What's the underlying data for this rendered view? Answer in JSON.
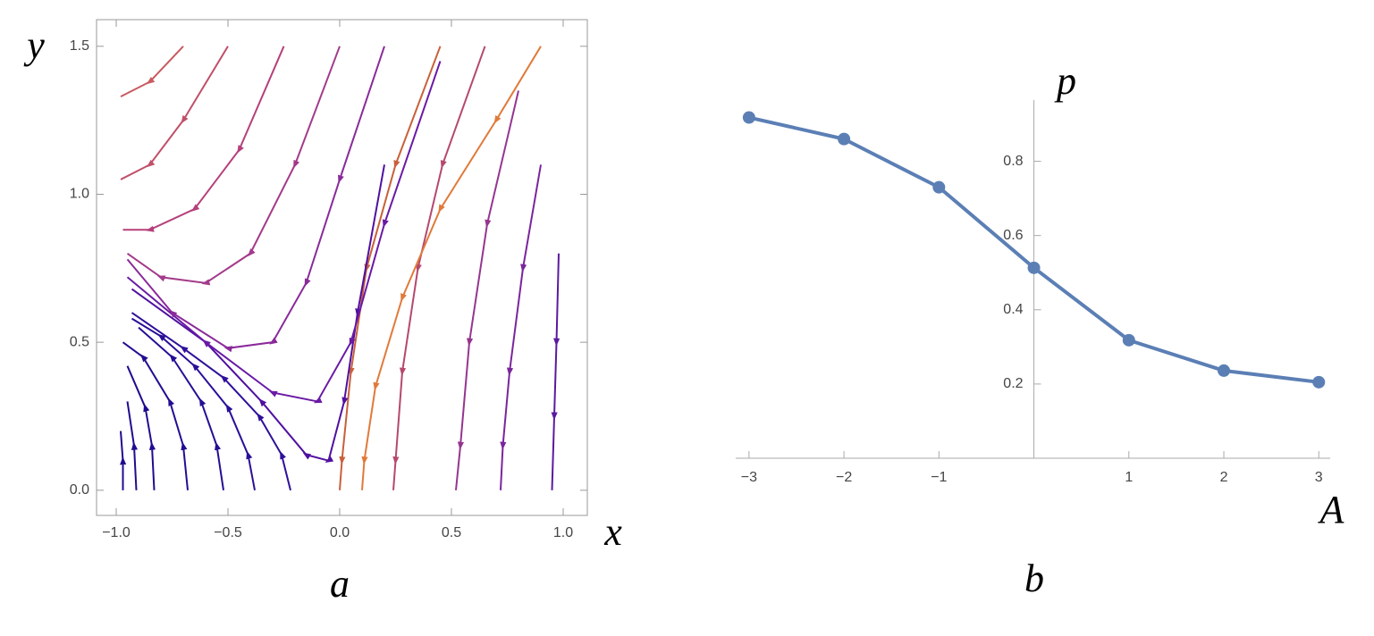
{
  "chart_data": [
    {
      "type": "stream",
      "caption": "a",
      "xlabel": "x",
      "ylabel": "y",
      "xlim": [
        -1.088,
        1.108
      ],
      "ylim": [
        -0.085,
        1.59
      ],
      "xticks": [
        {
          "value": -1,
          "label": "−1.0"
        },
        {
          "value": -0.5,
          "label": "−0.5"
        },
        {
          "value": 0,
          "label": "0.0"
        },
        0.5,
        {
          "value": 1,
          "label": "1.0"
        }
      ],
      "yticks": [
        {
          "value": 0,
          "label": "0.0"
        },
        0.5,
        {
          "value": 1,
          "label": "1.0"
        },
        1.5
      ],
      "series": [
        {
          "color": "#1f0c8f",
          "x": [
            -0.97,
            -0.97,
            -0.98
          ],
          "y": [
            0,
            0.1,
            0.2
          ]
        },
        {
          "color": "#1f0c8f",
          "x": [
            -0.91,
            -0.92,
            -0.95
          ],
          "y": [
            0,
            0.15,
            0.3
          ]
        },
        {
          "color": "#1f0c8f",
          "x": [
            -0.83,
            -0.84,
            -0.87,
            -0.95
          ],
          "y": [
            0,
            0.15,
            0.28,
            0.42
          ]
        },
        {
          "color": "#220d92",
          "x": [
            -0.68,
            -0.7,
            -0.76,
            -0.88,
            -0.97
          ],
          "y": [
            0,
            0.15,
            0.3,
            0.45,
            0.5
          ]
        },
        {
          "color": "#250e95",
          "x": [
            -0.52,
            -0.55,
            -0.62,
            -0.75,
            -0.9
          ],
          "y": [
            0,
            0.15,
            0.3,
            0.45,
            0.55
          ]
        },
        {
          "color": "#2a0f98",
          "x": [
            -0.38,
            -0.41,
            -0.5,
            -0.65,
            -0.8,
            -0.93
          ],
          "y": [
            0,
            0.12,
            0.28,
            0.42,
            0.52,
            0.58
          ]
        },
        {
          "color": "#2e109a",
          "x": [
            -0.22,
            -0.26,
            -0.36,
            -0.52,
            -0.7,
            -0.93
          ],
          "y": [
            0,
            0.12,
            0.25,
            0.38,
            0.48,
            0.6
          ]
        },
        {
          "color": "#5a1aa0",
          "x": [
            0.98,
            0.97,
            0.96,
            0.95
          ],
          "y": [
            0.8,
            0.5,
            0.25,
            0
          ]
        },
        {
          "color": "#7a259c",
          "x": [
            0.9,
            0.82,
            0.76,
            0.73,
            0.72
          ],
          "y": [
            1.1,
            0.75,
            0.4,
            0.15,
            0
          ]
        },
        {
          "color": "#953590",
          "x": [
            0.8,
            0.66,
            0.58,
            0.54,
            0.52
          ],
          "y": [
            1.35,
            0.9,
            0.5,
            0.15,
            0
          ]
        },
        {
          "color": "#b5486f",
          "x": [
            0.65,
            0.46,
            0.35,
            0.28,
            0.25,
            0.24
          ],
          "y": [
            1.5,
            1.1,
            0.75,
            0.4,
            0.1,
            0
          ]
        },
        {
          "color": "#e07a3a",
          "x": [
            0.9,
            0.7,
            0.45,
            0.28,
            0.16,
            0.11,
            0.1
          ],
          "y": [
            1.5,
            1.25,
            0.95,
            0.65,
            0.35,
            0.1,
            0
          ]
        },
        {
          "color": "#c8603a",
          "x": [
            0.45,
            0.25,
            0.12,
            0.05,
            0.01,
            0
          ],
          "y": [
            1.5,
            1.1,
            0.75,
            0.4,
            0.1,
            0
          ]
        },
        {
          "color": "#5010a0",
          "x": [
            0.2,
            0.08,
            0.02,
            -0.05,
            -0.15,
            -0.35,
            -0.6,
            -0.93
          ],
          "y": [
            1.1,
            0.6,
            0.3,
            0.1,
            0.12,
            0.3,
            0.5,
            0.68
          ]
        },
        {
          "color": "#6a1aa5",
          "x": [
            0.45,
            0.2,
            0.05,
            -0.1,
            -0.3,
            -0.6,
            -0.95
          ],
          "y": [
            1.45,
            0.9,
            0.5,
            0.3,
            0.33,
            0.5,
            0.72
          ]
        },
        {
          "color": "#8a2a9a",
          "x": [
            0.2,
            0,
            -0.15,
            -0.3,
            -0.5,
            -0.75,
            -0.95
          ],
          "y": [
            1.5,
            1.05,
            0.7,
            0.5,
            0.48,
            0.6,
            0.78
          ]
        },
        {
          "color": "#a33a8a",
          "x": [
            0,
            -0.2,
            -0.4,
            -0.6,
            -0.8,
            -0.95
          ],
          "y": [
            1.5,
            1.1,
            0.8,
            0.7,
            0.72,
            0.8
          ]
        },
        {
          "color": "#b5407a",
          "x": [
            -0.25,
            -0.45,
            -0.65,
            -0.85,
            -0.97
          ],
          "y": [
            1.5,
            1.15,
            0.95,
            0.88,
            0.88
          ]
        },
        {
          "color": "#c0506a",
          "x": [
            -0.5,
            -0.7,
            -0.85,
            -0.98
          ],
          "y": [
            1.5,
            1.25,
            1.1,
            1.05
          ]
        },
        {
          "color": "#c85a60",
          "x": [
            -0.7,
            -0.85,
            -0.98
          ],
          "y": [
            1.5,
            1.38,
            1.33
          ]
        }
      ]
    },
    {
      "type": "line",
      "caption": "b",
      "xlabel": "A",
      "ylabel": "p",
      "x": [
        -3,
        -2,
        -1,
        0,
        1,
        2,
        3
      ],
      "xlim": [
        -3.14,
        3.12
      ],
      "ylim": [
        0,
        0.965
      ],
      "xticks": [
        {
          "value": -3,
          "label": "−3"
        },
        {
          "value": -2,
          "label": "−2"
        },
        {
          "value": -1,
          "label": "−1"
        },
        1,
        2,
        3
      ],
      "yticks": [
        0.2,
        0.4,
        0.6,
        0.8
      ],
      "series": [
        {
          "color": "#5b7fb5",
          "values": [
            0.918,
            0.86,
            0.73,
            0.513,
            0.318,
            0.236,
            0.205
          ]
        }
      ]
    }
  ]
}
